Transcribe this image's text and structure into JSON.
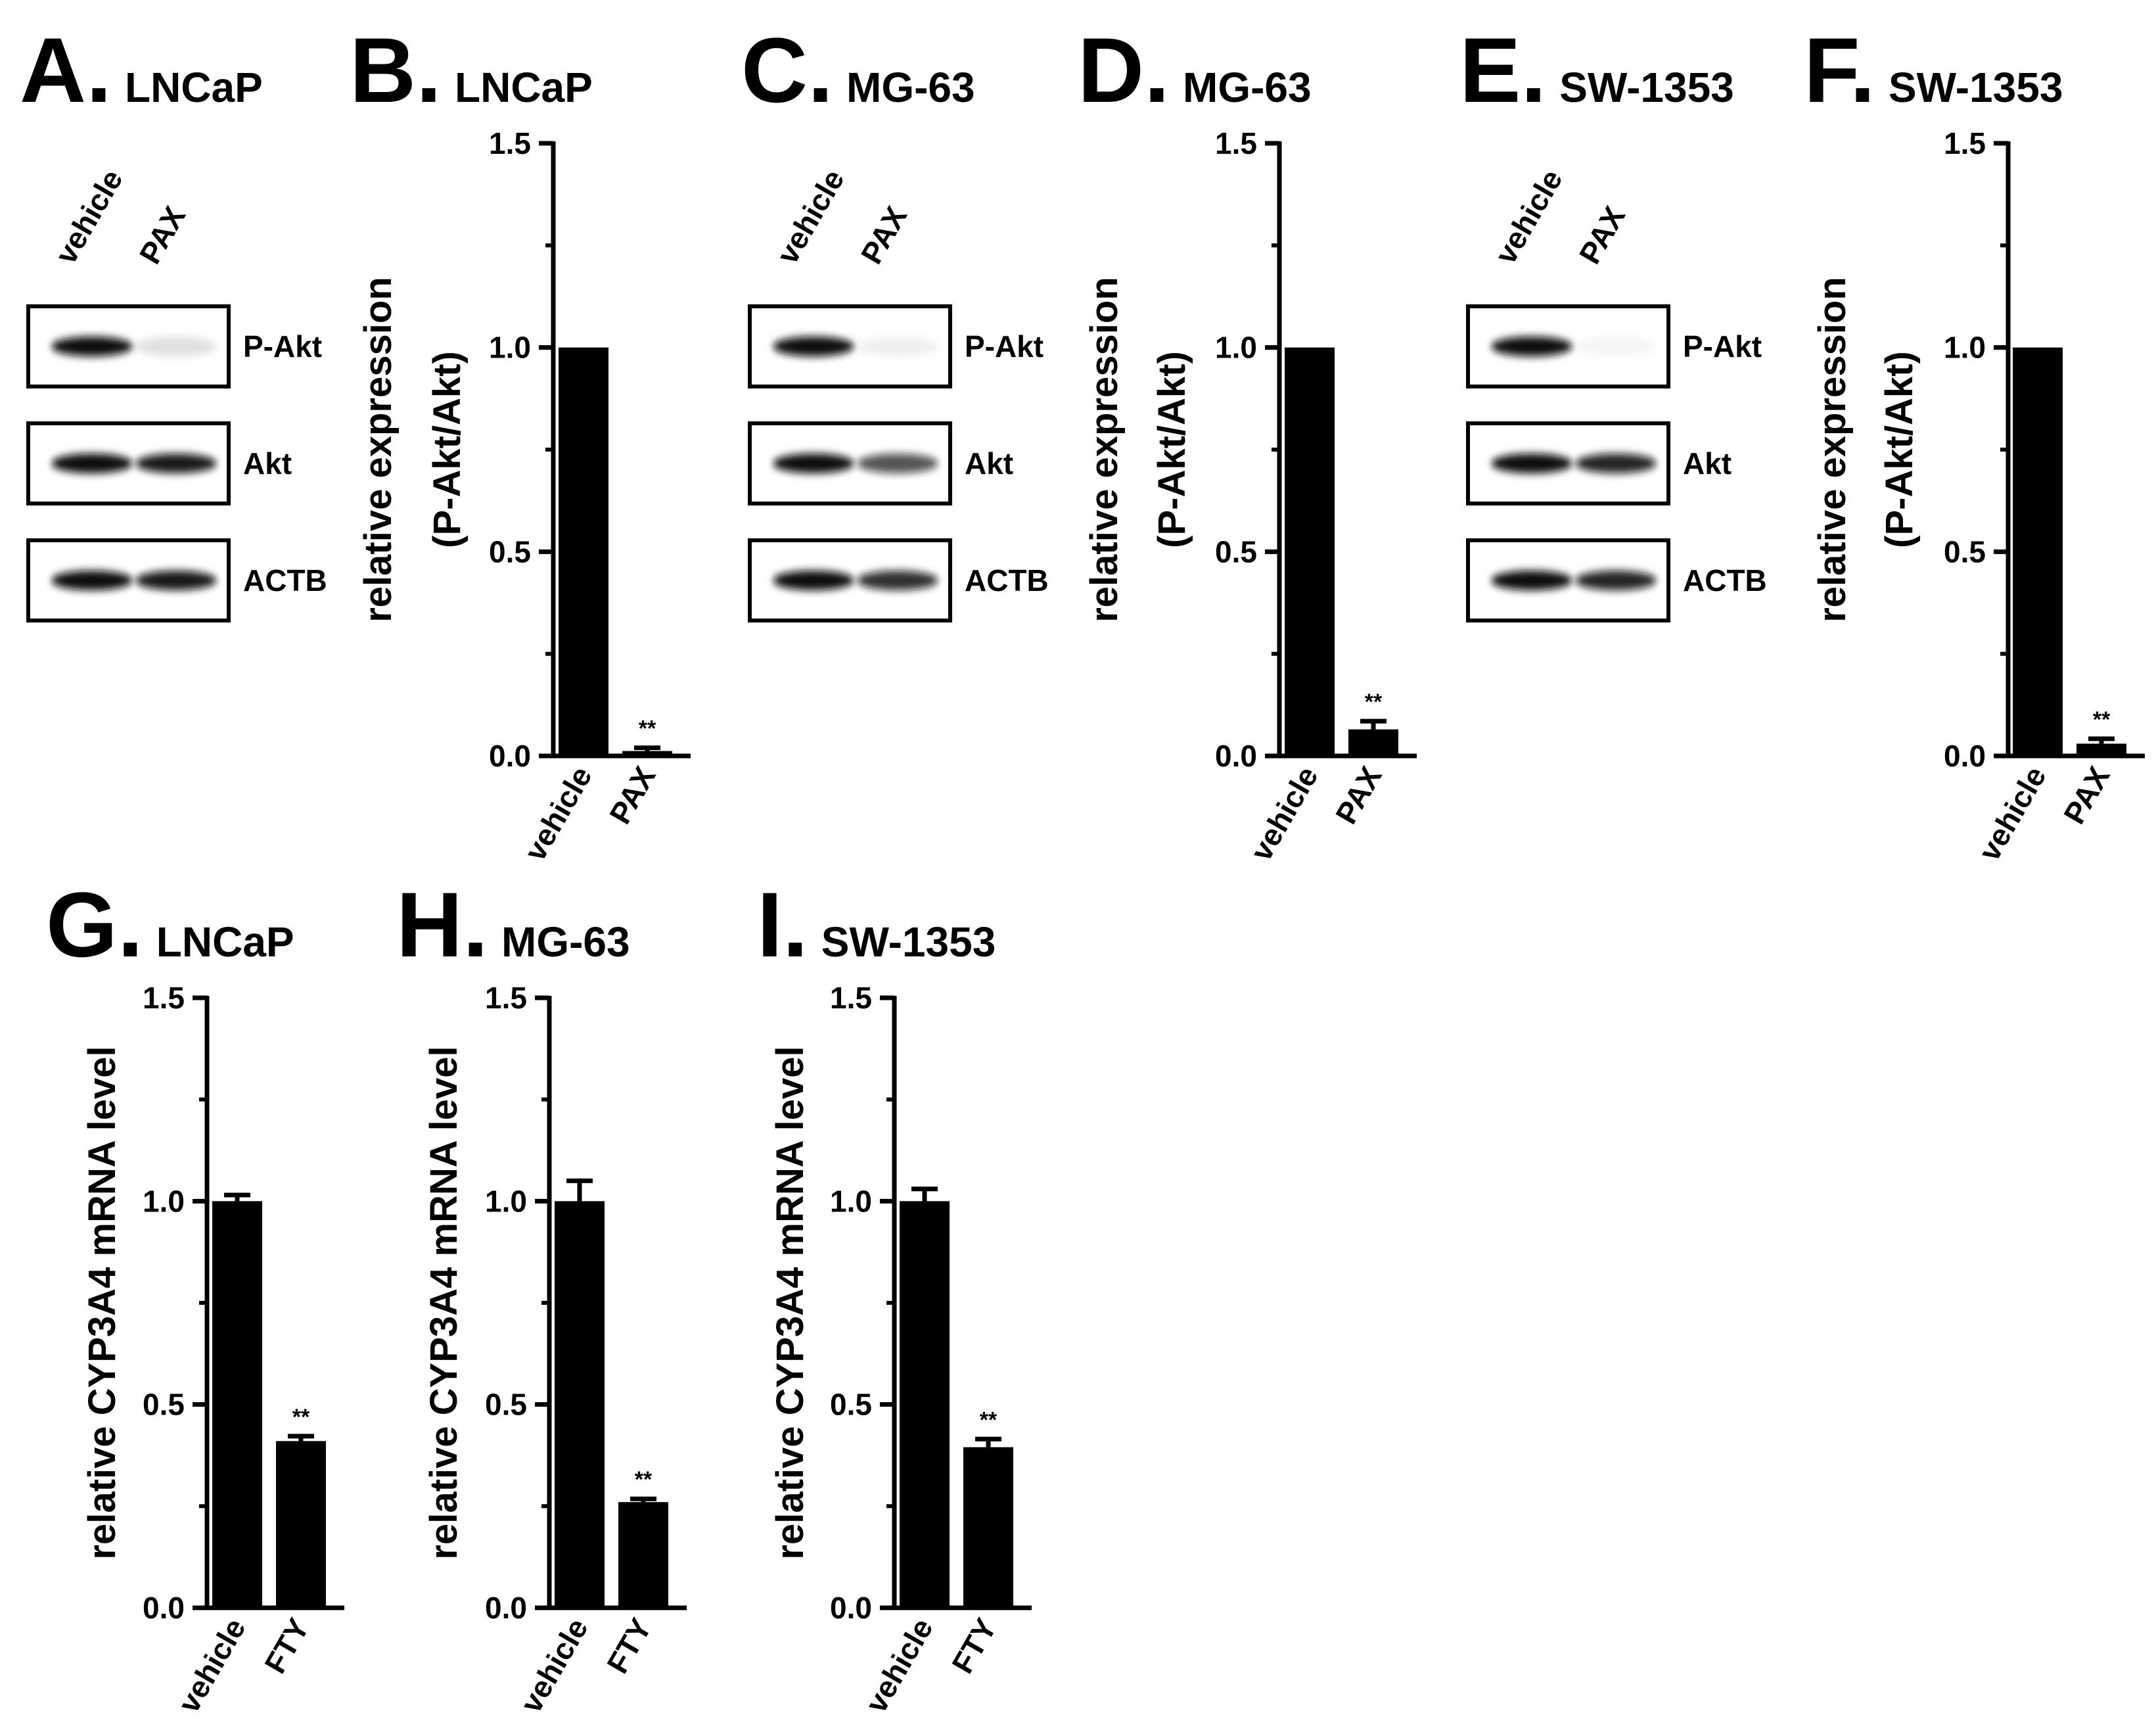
{
  "blot_panels": [
    {
      "letter": "A.",
      "cell": "LNCaP",
      "lanes": [
        "vehicle",
        "PAX"
      ],
      "proteins": [
        "P-Akt",
        "Akt",
        "ACTB"
      ],
      "band_intensity": [
        [
          1.0,
          0.12
        ],
        [
          1.0,
          0.95
        ],
        [
          1.0,
          0.95
        ]
      ]
    },
    {
      "letter": "C.",
      "cell": "MG-63",
      "lanes": [
        "vehicle",
        "PAX"
      ],
      "proteins": [
        "P-Akt",
        "Akt",
        "ACTB"
      ],
      "band_intensity": [
        [
          1.0,
          0.06
        ],
        [
          1.0,
          0.7
        ],
        [
          1.0,
          0.85
        ]
      ]
    },
    {
      "letter": "E.",
      "cell": "SW-1353",
      "lanes": [
        "vehicle",
        "PAX"
      ],
      "proteins": [
        "P-Akt",
        "Akt",
        "ACTB"
      ],
      "band_intensity": [
        [
          1.0,
          0.04
        ],
        [
          1.0,
          0.9
        ],
        [
          1.0,
          0.9
        ]
      ]
    }
  ],
  "chart_data": [
    {
      "type": "bar",
      "letter": "B.",
      "title": "LNCaP",
      "ylabel": [
        "relative expression",
        "(P-Akt/Akt)"
      ],
      "categories": [
        "vehicle",
        "PAX"
      ],
      "values": [
        1.0,
        0.012
      ],
      "errors": [
        0,
        0.008
      ],
      "significance": [
        "",
        "**"
      ],
      "ylim": [
        0,
        1.5
      ],
      "yticks": [
        "0.0",
        "0.5",
        "1.0",
        "1.5"
      ]
    },
    {
      "type": "bar",
      "letter": "D.",
      "title": "MG-63",
      "ylabel": [
        "relative expression",
        "(P-Akt/Akt)"
      ],
      "categories": [
        "vehicle",
        "PAX"
      ],
      "values": [
        1.0,
        0.065
      ],
      "errors": [
        0,
        0.02
      ],
      "significance": [
        "",
        "**"
      ],
      "ylim": [
        0,
        1.5
      ],
      "yticks": [
        "0.0",
        "0.5",
        "1.0",
        "1.5"
      ]
    },
    {
      "type": "bar",
      "letter": "F.",
      "title": "SW-1353",
      "ylabel": [
        "relative expression",
        "(P-Akt/Akt)"
      ],
      "categories": [
        "vehicle",
        "PAX"
      ],
      "values": [
        1.0,
        0.03
      ],
      "errors": [
        0,
        0.012
      ],
      "significance": [
        "",
        "**"
      ],
      "ylim": [
        0,
        1.5
      ],
      "yticks": [
        "0.0",
        "0.5",
        "1.0",
        "1.5"
      ]
    },
    {
      "type": "bar",
      "letter": "G.",
      "title": "LNCaP",
      "ylabel": [
        "relative CYP3A4 mRNA level"
      ],
      "categories": [
        "vehicle",
        "FTY"
      ],
      "values": [
        1.0,
        0.41
      ],
      "errors": [
        0.015,
        0.012
      ],
      "significance": [
        "",
        "**"
      ],
      "ylim": [
        0,
        1.5
      ],
      "yticks": [
        "0.0",
        "0.5",
        "1.0",
        "1.5"
      ]
    },
    {
      "type": "bar",
      "letter": "H.",
      "title": "MG-63",
      "ylabel": [
        "relative CYP3A4 mRNA level"
      ],
      "categories": [
        "vehicle",
        "FTY"
      ],
      "values": [
        1.0,
        0.26
      ],
      "errors": [
        0.05,
        0.008
      ],
      "significance": [
        "",
        "**"
      ],
      "ylim": [
        0,
        1.5
      ],
      "yticks": [
        "0.0",
        "0.5",
        "1.0",
        "1.5"
      ]
    },
    {
      "type": "bar",
      "letter": "I.",
      "title": "SW-1353",
      "ylabel": [
        "relative CYP3A4 mRNA level"
      ],
      "categories": [
        "vehicle",
        "FTY"
      ],
      "values": [
        1.0,
        0.395
      ],
      "errors": [
        0.03,
        0.02
      ],
      "significance": [
        "",
        "**"
      ],
      "ylim": [
        0,
        1.5
      ],
      "yticks": [
        "0.0",
        "0.5",
        "1.0",
        "1.5"
      ]
    }
  ]
}
